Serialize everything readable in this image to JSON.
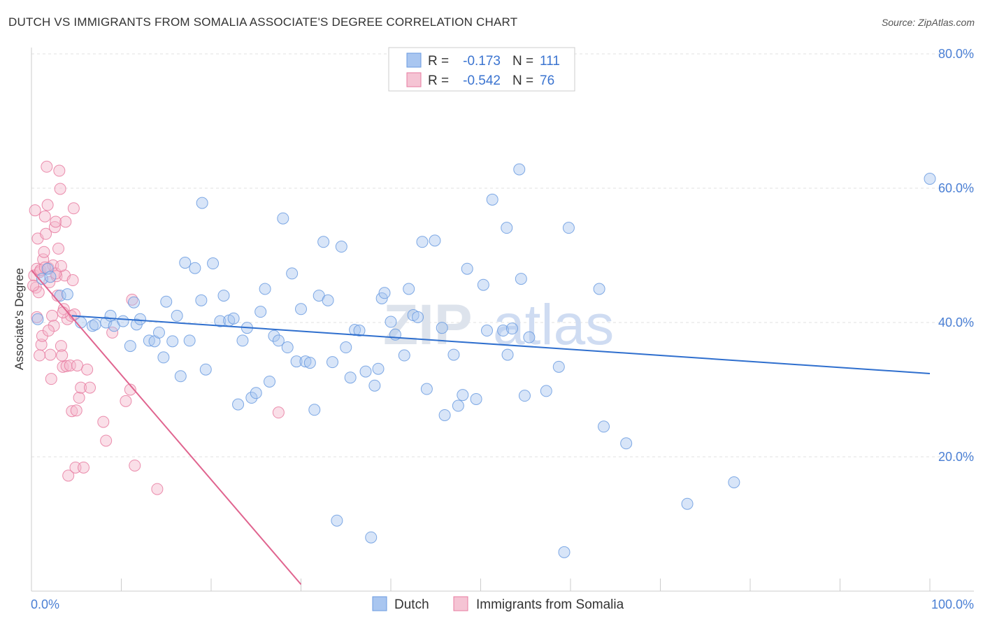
{
  "header": {
    "title": "DUTCH VS IMMIGRANTS FROM SOMALIA ASSOCIATE'S DEGREE CORRELATION CHART",
    "source": "Source: ZipAtlas.com"
  },
  "colors": {
    "dutch": "#6a9be0",
    "dutch_fill": "#a9c6f0",
    "somalia": "#e87ba0",
    "somalia_fill": "#f5b8cc",
    "dutch_line": "#2f6fce",
    "somalia_line": "#e0648f"
  },
  "legend": {
    "rows": [
      {
        "r_label": "R =",
        "r_value": "-0.173",
        "n_label": "N =",
        "n_value": "111"
      },
      {
        "r_label": "R =",
        "r_value": "-0.542",
        "n_label": "N =",
        "n_value": "76"
      }
    ]
  },
  "bottom_legend": {
    "dutch": "Dutch",
    "somalia": "Immigrants from Somalia"
  },
  "watermark": {
    "zip": "ZIP",
    "atlas": "atlas"
  },
  "chart_data": {
    "type": "scatter",
    "xlabel": "",
    "ylabel": "Associate's Degree",
    "xlim": [
      0,
      100
    ],
    "ylim": [
      0,
      85
    ],
    "x_tick_labels": [
      "0.0%",
      "100.0%"
    ],
    "y_ticks": [
      20,
      40,
      60,
      80
    ],
    "y_tick_labels": [
      "20.0%",
      "40.0%",
      "60.0%",
      "80.0%"
    ],
    "grid": true,
    "legend_position": "top-center",
    "series": [
      {
        "name": "Dutch",
        "trend": {
          "x": [
            4.5,
            100
          ],
          "y": [
            41.0,
            32.4
          ]
        },
        "points": [
          [
            0.7,
            40.5
          ],
          [
            1.2,
            46.5
          ],
          [
            1.8,
            48.0
          ],
          [
            2.1,
            46.8
          ],
          [
            3.2,
            44.0
          ],
          [
            4.0,
            44.2
          ],
          [
            5.5,
            40.0
          ],
          [
            6.8,
            39.5
          ],
          [
            7.1,
            39.7
          ],
          [
            8.3,
            40.0
          ],
          [
            8.8,
            41.0
          ],
          [
            9.2,
            39.5
          ],
          [
            10.2,
            40.2
          ],
          [
            11.0,
            36.5
          ],
          [
            11.4,
            43.0
          ],
          [
            11.7,
            39.7
          ],
          [
            12.1,
            40.5
          ],
          [
            13.1,
            37.3
          ],
          [
            13.7,
            37.2
          ],
          [
            14.2,
            38.5
          ],
          [
            14.7,
            34.8
          ],
          [
            15.0,
            43.1
          ],
          [
            15.7,
            37.2
          ],
          [
            16.2,
            41.0
          ],
          [
            16.6,
            32.0
          ],
          [
            17.1,
            48.9
          ],
          [
            17.6,
            37.3
          ],
          [
            18.2,
            48.1
          ],
          [
            18.9,
            43.3
          ],
          [
            19.0,
            57.8
          ],
          [
            19.4,
            33.0
          ],
          [
            20.2,
            48.8
          ],
          [
            21.0,
            40.2
          ],
          [
            21.4,
            44.0
          ],
          [
            22.0,
            40.3
          ],
          [
            22.5,
            40.6
          ],
          [
            23.0,
            27.8
          ],
          [
            23.5,
            37.3
          ],
          [
            24.0,
            39.2
          ],
          [
            24.5,
            28.8
          ],
          [
            25.0,
            29.5
          ],
          [
            25.5,
            41.6
          ],
          [
            26.0,
            45.0
          ],
          [
            26.5,
            31.2
          ],
          [
            27.0,
            38.0
          ],
          [
            27.5,
            37.3
          ],
          [
            28.0,
            55.5
          ],
          [
            28.5,
            36.3
          ],
          [
            29.0,
            47.3
          ],
          [
            29.5,
            34.2
          ],
          [
            30.0,
            42.0
          ],
          [
            30.5,
            34.2
          ],
          [
            31.0,
            34.0
          ],
          [
            31.5,
            27.0
          ],
          [
            32.0,
            44.0
          ],
          [
            32.5,
            52.0
          ],
          [
            33.0,
            43.3
          ],
          [
            33.5,
            34.1
          ],
          [
            34.0,
            10.5
          ],
          [
            34.5,
            51.3
          ],
          [
            35.0,
            36.3
          ],
          [
            35.5,
            31.8
          ],
          [
            36.0,
            38.9
          ],
          [
            36.5,
            38.8
          ],
          [
            37.2,
            32.7
          ],
          [
            37.8,
            8.0
          ],
          [
            38.2,
            30.6
          ],
          [
            38.6,
            33.1
          ],
          [
            39.0,
            43.6
          ],
          [
            39.3,
            44.4
          ],
          [
            40.0,
            40.1
          ],
          [
            40.5,
            38.2
          ],
          [
            41.5,
            35.1
          ],
          [
            42.0,
            45.0
          ],
          [
            42.5,
            41.1
          ],
          [
            43.0,
            40.8
          ],
          [
            43.5,
            52.0
          ],
          [
            44.0,
            30.1
          ],
          [
            44.9,
            52.2
          ],
          [
            45.7,
            39.2
          ],
          [
            46.0,
            26.2
          ],
          [
            47.0,
            35.2
          ],
          [
            47.5,
            27.6
          ],
          [
            48.0,
            29.2
          ],
          [
            48.5,
            48.0
          ],
          [
            49.5,
            28.6
          ],
          [
            50.3,
            45.6
          ],
          [
            50.7,
            38.8
          ],
          [
            51.3,
            58.3
          ],
          [
            52.5,
            38.8
          ],
          [
            52.9,
            54.1
          ],
          [
            53.0,
            35.2
          ],
          [
            53.5,
            39.1
          ],
          [
            54.3,
            62.8
          ],
          [
            54.5,
            46.5
          ],
          [
            54.9,
            29.1
          ],
          [
            55.4,
            37.8
          ],
          [
            57.3,
            29.8
          ],
          [
            58.7,
            33.4
          ],
          [
            59.3,
            5.8
          ],
          [
            59.8,
            54.1
          ],
          [
            63.2,
            45.0
          ],
          [
            63.7,
            24.5
          ],
          [
            66.2,
            22.0
          ],
          [
            73.0,
            13.0
          ],
          [
            78.2,
            16.2
          ],
          [
            100.0,
            61.4
          ]
        ]
      },
      {
        "name": "Immigrants from Somalia",
        "trend": {
          "x": [
            0,
            30
          ],
          "y": [
            47.8,
            1.0
          ]
        },
        "points": [
          [
            0.3,
            47.0
          ],
          [
            0.4,
            56.7
          ],
          [
            0.5,
            45.2
          ],
          [
            0.6,
            48.0
          ],
          [
            0.7,
            52.5
          ],
          [
            0.8,
            44.5
          ],
          [
            0.9,
            47.5
          ],
          [
            1.0,
            47.8
          ],
          [
            1.1,
            36.7
          ],
          [
            1.2,
            38.0
          ],
          [
            1.3,
            49.4
          ],
          [
            1.4,
            50.5
          ],
          [
            1.5,
            55.8
          ],
          [
            1.6,
            53.2
          ],
          [
            1.7,
            63.2
          ],
          [
            1.8,
            57.5
          ],
          [
            1.9,
            48.1
          ],
          [
            2.0,
            46.0
          ],
          [
            2.1,
            35.2
          ],
          [
            2.2,
            31.6
          ],
          [
            2.3,
            41.0
          ],
          [
            2.4,
            48.5
          ],
          [
            2.5,
            39.5
          ],
          [
            2.6,
            54.2
          ],
          [
            2.7,
            55.0
          ],
          [
            2.8,
            46.9
          ],
          [
            2.9,
            44.0
          ],
          [
            3.0,
            51.0
          ],
          [
            3.1,
            62.6
          ],
          [
            3.2,
            59.9
          ],
          [
            3.3,
            36.5
          ],
          [
            3.4,
            35.1
          ],
          [
            3.5,
            33.4
          ],
          [
            3.6,
            42.0
          ],
          [
            3.7,
            47.0
          ],
          [
            3.8,
            55.0
          ],
          [
            3.9,
            33.5
          ],
          [
            4.0,
            40.5
          ],
          [
            4.1,
            17.2
          ],
          [
            4.3,
            33.6
          ],
          [
            4.4,
            41.0
          ],
          [
            4.5,
            26.8
          ],
          [
            4.6,
            46.3
          ],
          [
            4.7,
            57.0
          ],
          [
            4.8,
            41.2
          ],
          [
            4.9,
            18.4
          ],
          [
            5.0,
            26.9
          ],
          [
            5.1,
            33.6
          ],
          [
            5.3,
            28.8
          ],
          [
            5.5,
            30.3
          ],
          [
            5.8,
            18.4
          ],
          [
            6.2,
            33.0
          ],
          [
            6.5,
            30.3
          ],
          [
            8.0,
            25.2
          ],
          [
            8.3,
            22.4
          ],
          [
            9.0,
            38.5
          ],
          [
            10.5,
            28.3
          ],
          [
            11.0,
            30.0
          ],
          [
            11.2,
            43.4
          ],
          [
            11.5,
            18.7
          ],
          [
            14.0,
            15.2
          ],
          [
            27.5,
            26.6
          ],
          [
            0.2,
            45.5
          ],
          [
            0.6,
            40.8
          ],
          [
            1.5,
            48.2
          ],
          [
            2.7,
            47.3
          ],
          [
            3.3,
            48.4
          ],
          [
            0.9,
            35.1
          ],
          [
            1.9,
            38.8
          ],
          [
            3.5,
            41.5
          ]
        ]
      }
    ]
  }
}
